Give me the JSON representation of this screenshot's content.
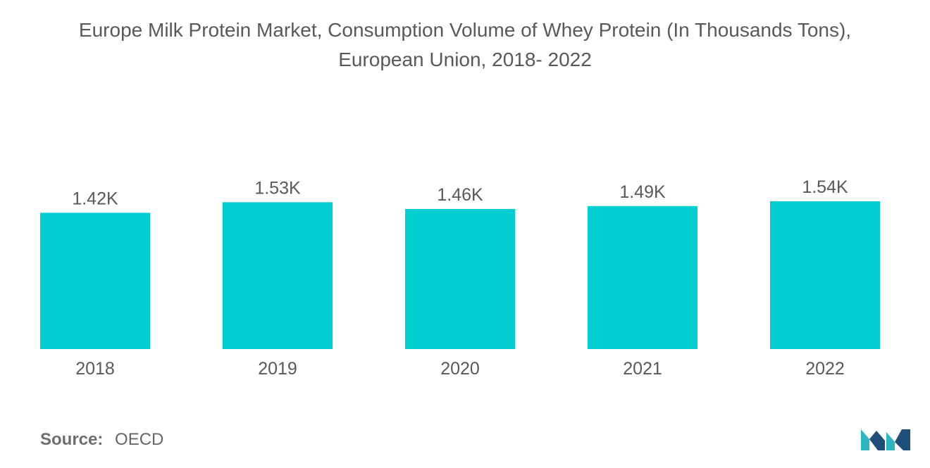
{
  "title_line1": "Europe Milk Protein Market, Consumption Volume of Whey Protein (In Thousands Tons),",
  "title_line2": "European Union, 2018- 2022",
  "source_label": "Source:",
  "source_value": "OECD",
  "colors": {
    "bar": "#00CED1",
    "text": "#595959",
    "logo_dark": "#1f4e79",
    "logo_teal": "#2bb6c0"
  },
  "logo_icon": "mordor-intelligence-logo",
  "chart_data": {
    "type": "bar",
    "categories": [
      "2018",
      "2019",
      "2020",
      "2021",
      "2022"
    ],
    "values": [
      1.42,
      1.53,
      1.46,
      1.49,
      1.54
    ],
    "data_labels": [
      "1.42K",
      "1.53K",
      "1.46K",
      "1.49K",
      "1.54K"
    ],
    "ylim": [
      0,
      1.54
    ],
    "grid": false,
    "legend": "none"
  }
}
